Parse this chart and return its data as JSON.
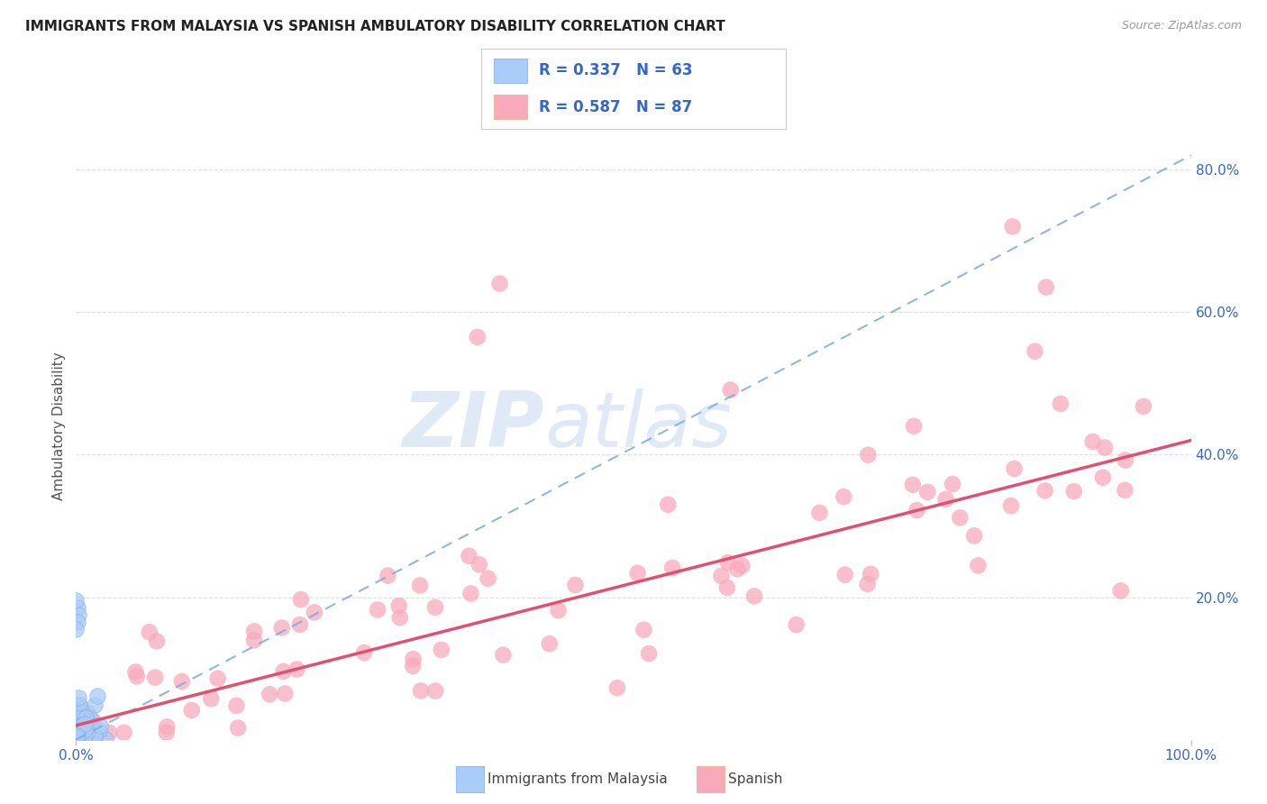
{
  "title": "IMMIGRANTS FROM MALAYSIA VS SPANISH AMBULATORY DISABILITY CORRELATION CHART",
  "source": "Source: ZipAtlas.com",
  "ylabel": "Ambulatory Disability",
  "xlim": [
    0.0,
    1.0
  ],
  "ylim": [
    0.0,
    0.88
  ],
  "xtick_labels_edge": [
    "0.0%",
    "100.0%"
  ],
  "xtick_values_edge": [
    0.0,
    1.0
  ],
  "ytick_labels": [
    "20.0%",
    "40.0%",
    "60.0%",
    "80.0%"
  ],
  "ytick_values": [
    0.2,
    0.4,
    0.6,
    0.8
  ],
  "blue_R": 0.337,
  "blue_N": 63,
  "pink_R": 0.587,
  "pink_N": 87,
  "blue_color": "#aaccf8",
  "pink_color": "#f8aabb",
  "blue_line_color": "#7aaade",
  "pink_line_color": "#e05070",
  "blue_label": "Immigrants from Malaysia",
  "pink_label": "Spanish",
  "legend_text_color": "#3366cc",
  "watermark_zip": "ZIP",
  "watermark_atlas": "atlas",
  "grid_color": "#dddddd",
  "title_color": "#222222",
  "source_color": "#999999",
  "ylabel_color": "#555555",
  "blue_trendline_start_x": 0.0,
  "blue_trendline_start_y": 0.0,
  "blue_trendline_end_x": 1.0,
  "blue_trendline_end_y": 0.82,
  "pink_trendline_start_x": 0.0,
  "pink_trendline_start_y": 0.02,
  "pink_trendline_end_x": 1.0,
  "pink_trendline_end_y": 0.42
}
